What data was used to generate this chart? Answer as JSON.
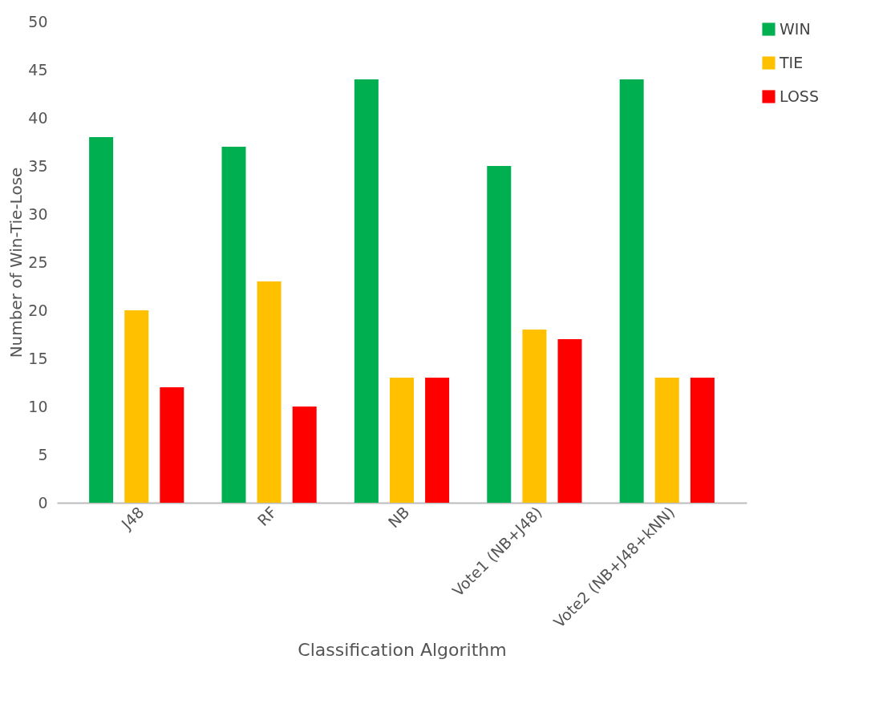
{
  "chart_data": {
    "type": "bar",
    "xlabel": "Classification Algorithm",
    "ylabel": "Number of  Win-Tie-Lose",
    "categories": [
      "J48",
      "RF",
      "NB",
      "Vote1 (NB+J48)",
      "Vote2 (NB+J48+kNN)"
    ],
    "series": [
      {
        "name": "WIN",
        "color": "#00b050",
        "values": [
          38,
          37,
          44,
          35,
          44
        ]
      },
      {
        "name": "TIE",
        "color": "#ffc000",
        "values": [
          20,
          23,
          13,
          18,
          13
        ]
      },
      {
        "name": "LOSS",
        "color": "#ff0000",
        "values": [
          12,
          10,
          13,
          17,
          13
        ]
      }
    ],
    "ylim": [
      0,
      50
    ],
    "yticks": [
      0,
      5,
      10,
      15,
      20,
      25,
      30,
      35,
      40,
      45,
      50
    ],
    "grid": false,
    "legend": "right"
  }
}
